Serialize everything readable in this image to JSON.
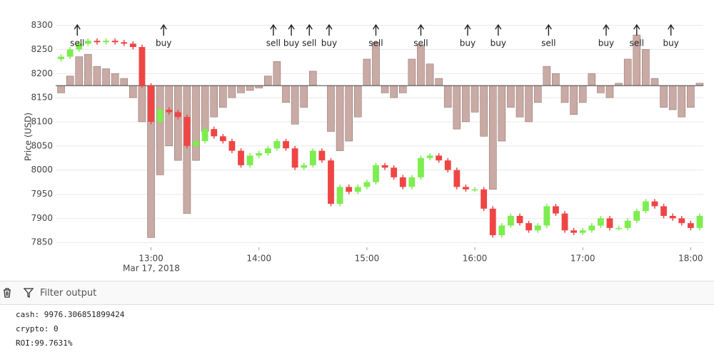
{
  "chart_data": {
    "type": "candlestick",
    "y_label": "Price (USD)",
    "xlim": [
      "2018-03-17 12:07",
      "2018-03-17 18:07"
    ],
    "xticks": [
      {
        "value": "2018-03-17 13:00",
        "label": "13:00"
      },
      {
        "value": "2018-03-17 14:00",
        "label": "14:00"
      },
      {
        "value": "2018-03-17 15:00",
        "label": "15:00"
      },
      {
        "value": "2018-03-17 16:00",
        "label": "16:00"
      },
      {
        "value": "2018-03-17 17:00",
        "label": "17:00"
      },
      {
        "value": "2018-03-17 18:00",
        "label": "18:00"
      }
    ],
    "x_date_label": "Mar 17, 2018",
    "ylim": [
      7840,
      8320
    ],
    "yticks": [
      7850,
      7900,
      7950,
      8000,
      8050,
      8100,
      8150,
      8200,
      8250,
      8300
    ],
    "grid": true,
    "up_color": "#7ded4f",
    "down_color": "#ef4545",
    "x": [
      "2018-03-17 12:10",
      "2018-03-17 12:15",
      "2018-03-17 12:20",
      "2018-03-17 12:25",
      "2018-03-17 12:30",
      "2018-03-17 12:35",
      "2018-03-17 12:40",
      "2018-03-17 12:45",
      "2018-03-17 12:50",
      "2018-03-17 12:55",
      "2018-03-17 13:00",
      "2018-03-17 13:05",
      "2018-03-17 13:10",
      "2018-03-17 13:15",
      "2018-03-17 13:20",
      "2018-03-17 13:25",
      "2018-03-17 13:30",
      "2018-03-17 13:35",
      "2018-03-17 13:40",
      "2018-03-17 13:45",
      "2018-03-17 13:50",
      "2018-03-17 13:55",
      "2018-03-17 14:00",
      "2018-03-17 14:05",
      "2018-03-17 14:10",
      "2018-03-17 14:15",
      "2018-03-17 14:20",
      "2018-03-17 14:25",
      "2018-03-17 14:30",
      "2018-03-17 14:35",
      "2018-03-17 14:40",
      "2018-03-17 14:45",
      "2018-03-17 14:50",
      "2018-03-17 14:55",
      "2018-03-17 15:00",
      "2018-03-17 15:05",
      "2018-03-17 15:10",
      "2018-03-17 15:15",
      "2018-03-17 15:20",
      "2018-03-17 15:25",
      "2018-03-17 15:30",
      "2018-03-17 15:35",
      "2018-03-17 15:40",
      "2018-03-17 15:45",
      "2018-03-17 15:50",
      "2018-03-17 15:55",
      "2018-03-17 16:00",
      "2018-03-17 16:05",
      "2018-03-17 16:10",
      "2018-03-17 16:15",
      "2018-03-17 16:20",
      "2018-03-17 16:25",
      "2018-03-17 16:30",
      "2018-03-17 16:35",
      "2018-03-17 16:40",
      "2018-03-17 16:45",
      "2018-03-17 16:50",
      "2018-03-17 16:55",
      "2018-03-17 17:00",
      "2018-03-17 17:05",
      "2018-03-17 17:10",
      "2018-03-17 17:15",
      "2018-03-17 17:20",
      "2018-03-17 17:25",
      "2018-03-17 17:30",
      "2018-03-17 17:35",
      "2018-03-17 17:40",
      "2018-03-17 17:45",
      "2018-03-17 17:50",
      "2018-03-17 17:55",
      "2018-03-17 18:00",
      "2018-03-17 18:05"
    ],
    "open": [
      8230,
      8235,
      8250,
      8262,
      8268,
      8265,
      8268,
      8265,
      8262,
      8255,
      8175,
      8100,
      8125,
      8120,
      8110,
      8050,
      8060,
      8085,
      8070,
      8060,
      8040,
      8010,
      8030,
      8035,
      8045,
      8060,
      8045,
      8005,
      8010,
      8040,
      8020,
      7930,
      7965,
      7955,
      7965,
      7975,
      8010,
      8005,
      7985,
      7965,
      7985,
      8025,
      8030,
      8020,
      8000,
      7965,
      7960,
      7960,
      7920,
      7865,
      7885,
      7905,
      7890,
      7875,
      7885,
      7925,
      7910,
      7875,
      7870,
      7875,
      7885,
      7900,
      7880,
      7880,
      7895,
      7915,
      7935,
      7925,
      7905,
      7900,
      7890,
      7880
    ],
    "high": [
      8240,
      8255,
      8267,
      8273,
      8273,
      8273,
      8273,
      8270,
      8267,
      8260,
      8180,
      8130,
      8130,
      8125,
      8115,
      8065,
      8090,
      8090,
      8075,
      8065,
      8045,
      8035,
      8040,
      8050,
      8065,
      8065,
      8050,
      8015,
      8045,
      8045,
      8025,
      7970,
      7970,
      7970,
      7980,
      8015,
      8015,
      8010,
      7990,
      7990,
      8030,
      8035,
      8035,
      8025,
      8005,
      7970,
      7965,
      7965,
      7925,
      7890,
      7910,
      7910,
      7895,
      7890,
      7930,
      7930,
      7915,
      7880,
      7880,
      7890,
      7905,
      7905,
      7885,
      7900,
      7920,
      7940,
      7940,
      7930,
      7910,
      7905,
      7895,
      7910
    ],
    "low": [
      8225,
      8230,
      8245,
      8257,
      8260,
      8260,
      8260,
      8257,
      8250,
      8170,
      8095,
      8095,
      8115,
      8105,
      8045,
      8045,
      8055,
      8065,
      8055,
      8035,
      8005,
      8005,
      8025,
      8030,
      8040,
      8040,
      8000,
      8000,
      8005,
      8015,
      7925,
      7925,
      7950,
      7950,
      7960,
      7970,
      8000,
      7980,
      7960,
      7960,
      7980,
      8020,
      8015,
      7995,
      7960,
      7955,
      7955,
      7915,
      7860,
      7860,
      7880,
      7885,
      7870,
      7870,
      7880,
      7905,
      7870,
      7865,
      7865,
      7870,
      7880,
      7875,
      7875,
      7875,
      7890,
      7910,
      7920,
      7900,
      7895,
      7885,
      7875,
      7875
    ],
    "close": [
      8235,
      8250,
      8262,
      8268,
      8265,
      8268,
      8265,
      8262,
      8255,
      8175,
      8100,
      8125,
      8120,
      8110,
      8050,
      8060,
      8085,
      8070,
      8060,
      8040,
      8010,
      8030,
      8035,
      8045,
      8060,
      8045,
      8005,
      8010,
      8040,
      8020,
      7930,
      7965,
      7955,
      7965,
      7975,
      8010,
      8005,
      7985,
      7965,
      7985,
      8025,
      8030,
      8020,
      8000,
      7965,
      7960,
      7960,
      7920,
      7865,
      7885,
      7905,
      7890,
      7875,
      7885,
      7925,
      7910,
      7875,
      7870,
      7875,
      7885,
      7900,
      7880,
      7880,
      7895,
      7915,
      7935,
      7925,
      7905,
      7900,
      7890,
      7880,
      7905
    ],
    "histogram": {
      "baseline": 8175,
      "color": "#c9aaa5",
      "edge": "#8a6a64",
      "values": [
        8160,
        8195,
        8235,
        8240,
        8215,
        8210,
        8200,
        8190,
        8150,
        8100,
        7860,
        7990,
        8050,
        8020,
        7910,
        8020,
        8080,
        8110,
        8130,
        8150,
        8160,
        8165,
        8170,
        8195,
        8225,
        8140,
        8095,
        8130,
        8205,
        8175,
        8080,
        8040,
        8060,
        8110,
        8230,
        8265,
        8160,
        8150,
        8160,
        8230,
        8260,
        8220,
        8190,
        8130,
        8085,
        8100,
        8120,
        8070,
        7960,
        8060,
        8130,
        8110,
        8100,
        8140,
        8215,
        8200,
        8140,
        8115,
        8140,
        8200,
        8160,
        8150,
        8180,
        8230,
        8280,
        8250,
        8190,
        8130,
        8125,
        8110,
        8130,
        8180
      ]
    },
    "annotations": [
      {
        "x": "2018-03-17 12:19",
        "text": "sell"
      },
      {
        "x": "2018-03-17 13:07",
        "text": "buy"
      },
      {
        "x": "2018-03-17 14:08",
        "text": "sell"
      },
      {
        "x": "2018-03-17 14:18",
        "text": "buy"
      },
      {
        "x": "2018-03-17 14:28",
        "text": "sell"
      },
      {
        "x": "2018-03-17 14:39",
        "text": "buy"
      },
      {
        "x": "2018-03-17 15:05",
        "text": "sell"
      },
      {
        "x": "2018-03-17 15:30",
        "text": "sell"
      },
      {
        "x": "2018-03-17 15:56",
        "text": "buy"
      },
      {
        "x": "2018-03-17 16:13",
        "text": "buy"
      },
      {
        "x": "2018-03-17 16:41",
        "text": "sell"
      },
      {
        "x": "2018-03-17 17:13",
        "text": "buy"
      },
      {
        "x": "2018-03-17 17:30",
        "text": "sell"
      },
      {
        "x": "2018-03-17 17:49",
        "text": "buy"
      }
    ]
  },
  "console": {
    "filter_placeholder": "Filter output",
    "lines": [
      "cash: 9976.306851899424",
      "crypto: 0",
      "ROI:99.7631%"
    ]
  }
}
